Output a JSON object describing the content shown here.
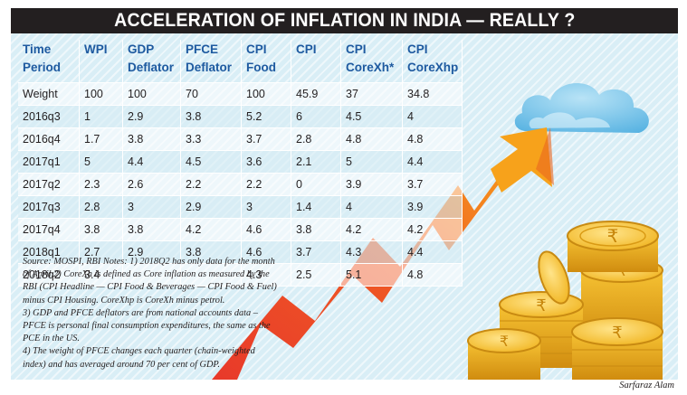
{
  "title": "ACCELERATION OF INFLATION IN INDIA — REALLY ?",
  "table": {
    "headers": [
      [
        "Time",
        "Period"
      ],
      [
        "WPI",
        ""
      ],
      [
        "GDP",
        "Deflator"
      ],
      [
        "PFCE",
        "Deflator"
      ],
      [
        "CPI",
        "Food"
      ],
      [
        "CPI",
        ""
      ],
      [
        "CPI",
        "CoreXh*"
      ],
      [
        "CPI",
        "CoreXhp"
      ]
    ],
    "rows": [
      [
        "Weight",
        "100",
        "100",
        "70",
        "100",
        "45.9",
        "37",
        "34.8"
      ],
      [
        "2016q3",
        "1",
        "2.9",
        "3.8",
        "5.2",
        "6",
        "4.5",
        "4"
      ],
      [
        "2016q4",
        "1.7",
        "3.8",
        "3.3",
        "3.7",
        "2.8",
        "4.8",
        "4.8"
      ],
      [
        "2017q1",
        "5",
        "4.4",
        "4.5",
        "3.6",
        "2.1",
        "5",
        "4.4"
      ],
      [
        "2017q2",
        "2.3",
        "2.6",
        "2.2",
        "2.2",
        "0",
        "3.9",
        "3.7"
      ],
      [
        "2017q3",
        "2.8",
        "3",
        "2.9",
        "3",
        "1.4",
        "4",
        "3.9"
      ],
      [
        "2017q4",
        "3.8",
        "3.8",
        "4.2",
        "4.6",
        "3.8",
        "4.2",
        "4.2"
      ],
      [
        "2018q1",
        "2.7",
        "2.9",
        "3.8",
        "4.6",
        "3.7",
        "4.3",
        "4.4"
      ],
      [
        "2018q2",
        "3.4",
        "",
        "",
        "4.3",
        "2.5",
        "5.1",
        "4.8"
      ]
    ]
  },
  "notes": [
    "Source: MOSPI, RBI Notes: 1) 2018Q2 has only data for the month of April.2) CoreXh is defined as Core inflation as measured by the RBI (CPI Headline — CPI Food & Beverages — CPI Food & Fuel) minus CPI Housing. CoreXhp is CoreXh minus petrol.",
    "3) GDP and PFCE deflators are from national accounts data – PFCE is personal final consumption expenditures, the same as the PCE in the US.",
    "4) The weight of PFCE changes each quarter (chain-weighted index) and has averaged around 70 per cent of GDP."
  ],
  "credit": "Sarfaraz Alam",
  "illustration": {
    "elements": [
      "cloud-icon",
      "arrow-icon",
      "rupee-coin-stack-icon"
    ],
    "colors": {
      "title_bar": "#231f20",
      "background": "#d9eef6",
      "header_text": "#1e5aa0",
      "arrow_red": "#e8392a",
      "arrow_orange": "#f7a21b",
      "coin_gold": "#f2b51d",
      "cloud": "#7fc6ea"
    }
  }
}
